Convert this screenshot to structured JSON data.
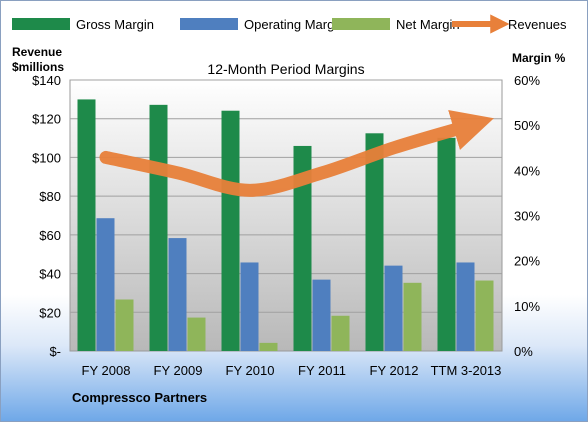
{
  "chart_data": {
    "type": "bar",
    "title": "12-Month Period Margins",
    "left_axis_label_line1": "Revenue",
    "left_axis_label_line2": "$millions",
    "right_axis_label": "Margin %",
    "footer": "Compressco Partners",
    "categories": [
      "FY 2008",
      "FY 2009",
      "FY 2010",
      "FY 2011",
      "FY 2012",
      "TTM 3-2013"
    ],
    "left_ticks": [
      "$-",
      "$20",
      "$40",
      "$60",
      "$80",
      "$100",
      "$120",
      "$140"
    ],
    "right_ticks": [
      "0%",
      "10%",
      "20%",
      "30%",
      "40%",
      "50%",
      "60%"
    ],
    "ylim_left": [
      0,
      140
    ],
    "ylim_right": [
      0,
      60
    ],
    "series": [
      {
        "name": "Gross Margin",
        "axis": "right",
        "color": "#1e8a4a",
        "values": [
          55.7,
          54.5,
          53.2,
          45.4,
          48.2,
          47.2
        ]
      },
      {
        "name": "Operating Margin",
        "axis": "right",
        "color": "#4f7fbf",
        "values": [
          29.4,
          25.0,
          19.6,
          15.8,
          18.9,
          19.6
        ]
      },
      {
        "name": "Net Margin",
        "axis": "right",
        "color": "#8fb55a",
        "values": [
          11.4,
          7.4,
          1.8,
          7.8,
          15.1,
          15.6
        ]
      },
      {
        "name": "Revenues",
        "axis": "left",
        "color": "#e8803a",
        "values": [
          100,
          92,
          83,
          92,
          105,
          116
        ]
      }
    ],
    "grid": true,
    "legend_position": "top"
  }
}
